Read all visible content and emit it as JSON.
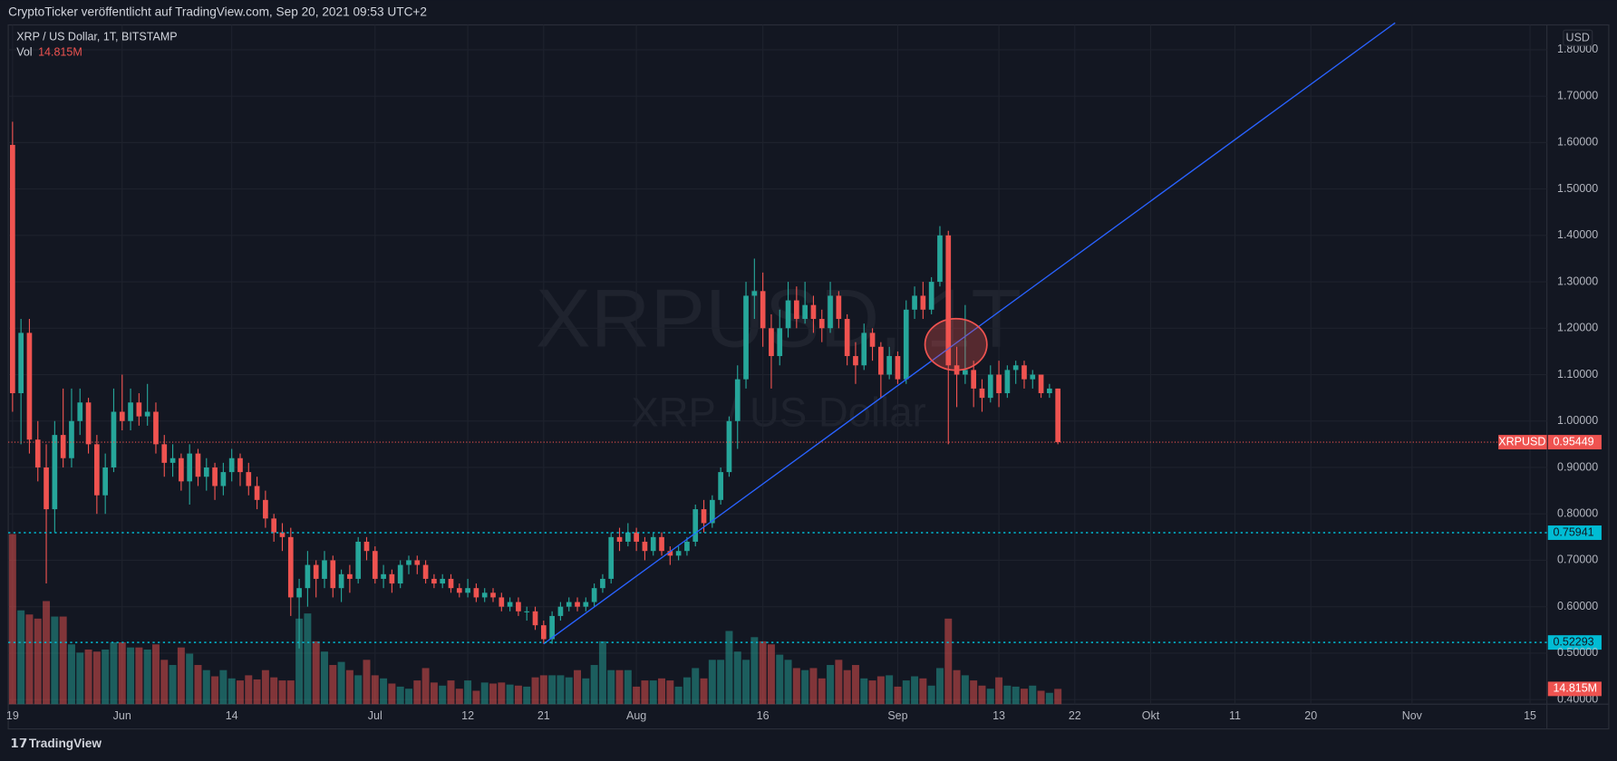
{
  "header": {
    "publisher": "CryptoTicker veröffentlicht auf TradingView.com, Sep 20, 2021 09:53 UTC+2",
    "brand": "TradingView"
  },
  "watermark": {
    "symbol": "XRPUSD, 1T",
    "name": "XRP / US Dollar"
  },
  "chart_data": {
    "type": "candlestick",
    "title": "XRP / US Dollar, 1T, BITSTAMP",
    "currency": "USD",
    "symbol": "XRPUSD",
    "up_color": "#26a69a",
    "down_color": "#ef5350",
    "grid": true,
    "xlim": [
      "2021-05-18",
      "2021-11-17"
    ],
    "ylim": [
      0.39,
      1.858
    ],
    "volume_lim": [
      0,
      165
    ],
    "yticks": [
      {
        "value": 0.4,
        "label": "0.40000"
      },
      {
        "value": 0.5,
        "label": "0.50000"
      },
      {
        "value": 0.6,
        "label": "0.60000"
      },
      {
        "value": 0.7,
        "label": "0.70000"
      },
      {
        "value": 0.8,
        "label": "0.80000"
      },
      {
        "value": 0.9,
        "label": "0.90000"
      },
      {
        "value": 1.0,
        "label": "1.00000"
      },
      {
        "value": 1.1,
        "label": "1.10000"
      },
      {
        "value": 1.2,
        "label": "1.20000"
      },
      {
        "value": 1.3,
        "label": "1.30000"
      },
      {
        "value": 1.4,
        "label": "1.40000"
      },
      {
        "value": 1.5,
        "label": "1.50000"
      },
      {
        "value": 1.6,
        "label": "1.60000"
      },
      {
        "value": 1.7,
        "label": "1.70000"
      },
      {
        "value": 1.8,
        "label": "1.80000"
      }
    ],
    "xticks": [
      {
        "value": "2021-05-19",
        "label": "19"
      },
      {
        "value": "2021-06-01",
        "label": "Jun"
      },
      {
        "value": "2021-06-14",
        "label": "14"
      },
      {
        "value": "2021-07-01",
        "label": "Jul"
      },
      {
        "value": "2021-07-12",
        "label": "12"
      },
      {
        "value": "2021-07-21",
        "label": "21"
      },
      {
        "value": "2021-08-01",
        "label": "Aug"
      },
      {
        "value": "2021-08-16",
        "label": "16"
      },
      {
        "value": "2021-09-01",
        "label": "Sep"
      },
      {
        "value": "2021-09-13",
        "label": "13"
      },
      {
        "value": "2021-09-22",
        "label": "22"
      },
      {
        "value": "2021-10-01",
        "label": "Okt"
      },
      {
        "value": "2021-10-11",
        "label": "11"
      },
      {
        "value": "2021-10-20",
        "label": "20"
      },
      {
        "value": "2021-11-01",
        "label": "Nov"
      },
      {
        "value": "2021-11-15",
        "label": "15"
      }
    ],
    "x": [
      "2021-05-19",
      "2021-05-20",
      "2021-05-21",
      "2021-05-22",
      "2021-05-23",
      "2021-05-24",
      "2021-05-25",
      "2021-05-26",
      "2021-05-27",
      "2021-05-28",
      "2021-05-29",
      "2021-05-30",
      "2021-05-31",
      "2021-06-01",
      "2021-06-02",
      "2021-06-03",
      "2021-06-04",
      "2021-06-05",
      "2021-06-06",
      "2021-06-07",
      "2021-06-08",
      "2021-06-09",
      "2021-06-10",
      "2021-06-11",
      "2021-06-12",
      "2021-06-13",
      "2021-06-14",
      "2021-06-15",
      "2021-06-16",
      "2021-06-17",
      "2021-06-18",
      "2021-06-19",
      "2021-06-20",
      "2021-06-21",
      "2021-06-22",
      "2021-06-23",
      "2021-06-24",
      "2021-06-25",
      "2021-06-26",
      "2021-06-27",
      "2021-06-28",
      "2021-06-29",
      "2021-06-30",
      "2021-07-01",
      "2021-07-02",
      "2021-07-03",
      "2021-07-04",
      "2021-07-05",
      "2021-07-06",
      "2021-07-07",
      "2021-07-08",
      "2021-07-09",
      "2021-07-10",
      "2021-07-11",
      "2021-07-12",
      "2021-07-13",
      "2021-07-14",
      "2021-07-15",
      "2021-07-16",
      "2021-07-17",
      "2021-07-18",
      "2021-07-19",
      "2021-07-20",
      "2021-07-21",
      "2021-07-22",
      "2021-07-23",
      "2021-07-24",
      "2021-07-25",
      "2021-07-26",
      "2021-07-27",
      "2021-07-28",
      "2021-07-29",
      "2021-07-30",
      "2021-07-31",
      "2021-08-01",
      "2021-08-02",
      "2021-08-03",
      "2021-08-04",
      "2021-08-05",
      "2021-08-06",
      "2021-08-07",
      "2021-08-08",
      "2021-08-09",
      "2021-08-10",
      "2021-08-11",
      "2021-08-12",
      "2021-08-13",
      "2021-08-14",
      "2021-08-15",
      "2021-08-16",
      "2021-08-17",
      "2021-08-18",
      "2021-08-19",
      "2021-08-20",
      "2021-08-21",
      "2021-08-22",
      "2021-08-23",
      "2021-08-24",
      "2021-08-25",
      "2021-08-26",
      "2021-08-27",
      "2021-08-28",
      "2021-08-29",
      "2021-08-30",
      "2021-08-31",
      "2021-09-01",
      "2021-09-02",
      "2021-09-03",
      "2021-09-04",
      "2021-09-05",
      "2021-09-06",
      "2021-09-07",
      "2021-09-08",
      "2021-09-09",
      "2021-09-10",
      "2021-09-11",
      "2021-09-12",
      "2021-09-13",
      "2021-09-14",
      "2021-09-15",
      "2021-09-16",
      "2021-09-17",
      "2021-09-18",
      "2021-09-19",
      "2021-09-20"
    ],
    "open": [
      1.595,
      1.06,
      1.19,
      0.96,
      0.9,
      0.81,
      0.97,
      0.92,
      1.0,
      1.04,
      0.95,
      0.84,
      0.9,
      1.02,
      1.0,
      1.04,
      1.01,
      1.02,
      0.95,
      0.91,
      0.92,
      0.87,
      0.93,
      0.88,
      0.9,
      0.86,
      0.89,
      0.92,
      0.89,
      0.86,
      0.83,
      0.79,
      0.76,
      0.75,
      0.62,
      0.64,
      0.69,
      0.66,
      0.7,
      0.64,
      0.67,
      0.66,
      0.74,
      0.72,
      0.66,
      0.67,
      0.65,
      0.69,
      0.7,
      0.69,
      0.66,
      0.65,
      0.66,
      0.64,
      0.63,
      0.64,
      0.62,
      0.63,
      0.62,
      0.6,
      0.61,
      0.59,
      0.59,
      0.56,
      0.53,
      0.58,
      0.6,
      0.61,
      0.6,
      0.61,
      0.64,
      0.66,
      0.75,
      0.74,
      0.76,
      0.74,
      0.72,
      0.75,
      0.72,
      0.71,
      0.72,
      0.74,
      0.81,
      0.78,
      0.83,
      0.89,
      1.0,
      1.09,
      1.27,
      1.28,
      1.2,
      1.14,
      1.2,
      1.26,
      1.22,
      1.25,
      1.22,
      1.2,
      1.27,
      1.22,
      1.14,
      1.12,
      1.19,
      1.16,
      1.1,
      1.14,
      1.09,
      1.24,
      1.27,
      1.24,
      1.3,
      1.4,
      1.12,
      1.1,
      1.11,
      1.07,
      1.05,
      1.1,
      1.06,
      1.11,
      1.12,
      1.09,
      1.1,
      1.06,
      1.07
    ],
    "high": [
      1.645,
      1.22,
      1.22,
      1.0,
      0.95,
      1.0,
      1.07,
      1.07,
      1.07,
      1.05,
      0.97,
      0.93,
      1.07,
      1.1,
      1.07,
      1.06,
      1.08,
      1.04,
      0.97,
      0.95,
      0.93,
      0.95,
      0.94,
      0.92,
      0.91,
      0.91,
      0.94,
      0.93,
      0.91,
      0.88,
      0.85,
      0.8,
      0.78,
      0.77,
      0.66,
      0.72,
      0.7,
      0.72,
      0.71,
      0.68,
      0.69,
      0.75,
      0.75,
      0.73,
      0.69,
      0.68,
      0.7,
      0.71,
      0.71,
      0.7,
      0.67,
      0.67,
      0.67,
      0.65,
      0.66,
      0.65,
      0.64,
      0.64,
      0.63,
      0.62,
      0.62,
      0.6,
      0.6,
      0.57,
      0.59,
      0.61,
      0.62,
      0.62,
      0.62,
      0.65,
      0.67,
      0.76,
      0.77,
      0.78,
      0.77,
      0.75,
      0.76,
      0.76,
      0.73,
      0.73,
      0.75,
      0.82,
      0.83,
      0.84,
      0.9,
      1.01,
      1.12,
      1.3,
      1.35,
      1.32,
      1.23,
      1.24,
      1.3,
      1.29,
      1.3,
      1.27,
      1.24,
      1.3,
      1.28,
      1.23,
      1.17,
      1.21,
      1.2,
      1.17,
      1.16,
      1.15,
      1.26,
      1.29,
      1.3,
      1.31,
      1.42,
      1.41,
      1.16,
      1.25,
      1.13,
      1.09,
      1.12,
      1.13,
      1.12,
      1.13,
      1.13,
      1.11,
      1.1,
      1.08,
      1.07
    ],
    "low": [
      1.02,
      0.95,
      0.93,
      0.87,
      0.65,
      0.76,
      0.9,
      0.9,
      0.97,
      0.93,
      0.8,
      0.8,
      0.89,
      0.98,
      0.98,
      0.99,
      0.99,
      0.93,
      0.88,
      0.88,
      0.85,
      0.82,
      0.86,
      0.85,
      0.83,
      0.84,
      0.87,
      0.86,
      0.84,
      0.81,
      0.77,
      0.74,
      0.72,
      0.58,
      0.51,
      0.6,
      0.62,
      0.64,
      0.62,
      0.61,
      0.63,
      0.65,
      0.7,
      0.65,
      0.64,
      0.63,
      0.64,
      0.67,
      0.67,
      0.65,
      0.64,
      0.64,
      0.63,
      0.62,
      0.62,
      0.61,
      0.61,
      0.61,
      0.59,
      0.59,
      0.58,
      0.57,
      0.55,
      0.52,
      0.52,
      0.57,
      0.59,
      0.59,
      0.59,
      0.6,
      0.63,
      0.65,
      0.72,
      0.73,
      0.72,
      0.7,
      0.71,
      0.71,
      0.69,
      0.7,
      0.71,
      0.73,
      0.76,
      0.77,
      0.82,
      0.88,
      0.94,
      1.07,
      1.22,
      1.16,
      1.07,
      1.12,
      1.18,
      1.2,
      1.21,
      1.19,
      1.17,
      1.19,
      1.2,
      1.12,
      1.08,
      1.11,
      1.13,
      1.05,
      1.09,
      1.08,
      1.08,
      1.22,
      1.22,
      1.23,
      1.29,
      0.95,
      1.03,
      1.08,
      1.03,
      1.02,
      1.04,
      1.03,
      1.05,
      1.08,
      1.07,
      1.07,
      1.05,
      1.05,
      0.95
    ],
    "close": [
      1.06,
      1.19,
      0.96,
      0.9,
      0.81,
      0.97,
      0.92,
      1.0,
      1.04,
      0.95,
      0.84,
      0.9,
      1.02,
      1.0,
      1.04,
      1.01,
      1.02,
      0.95,
      0.91,
      0.92,
      0.87,
      0.93,
      0.88,
      0.9,
      0.86,
      0.89,
      0.92,
      0.89,
      0.86,
      0.83,
      0.79,
      0.76,
      0.75,
      0.62,
      0.64,
      0.69,
      0.66,
      0.7,
      0.64,
      0.67,
      0.66,
      0.74,
      0.72,
      0.66,
      0.67,
      0.65,
      0.69,
      0.7,
      0.69,
      0.66,
      0.65,
      0.66,
      0.64,
      0.63,
      0.64,
      0.62,
      0.63,
      0.62,
      0.6,
      0.61,
      0.59,
      0.59,
      0.56,
      0.53,
      0.58,
      0.6,
      0.61,
      0.6,
      0.61,
      0.64,
      0.66,
      0.75,
      0.74,
      0.76,
      0.74,
      0.72,
      0.75,
      0.72,
      0.71,
      0.72,
      0.74,
      0.81,
      0.78,
      0.83,
      0.89,
      1.0,
      1.09,
      1.27,
      1.28,
      1.2,
      1.14,
      1.2,
      1.26,
      1.22,
      1.25,
      1.22,
      1.2,
      1.27,
      1.22,
      1.14,
      1.12,
      1.19,
      1.16,
      1.1,
      1.14,
      1.09,
      1.24,
      1.27,
      1.24,
      1.3,
      1.4,
      1.12,
      1.1,
      1.11,
      1.07,
      1.05,
      1.1,
      1.06,
      1.11,
      1.12,
      1.09,
      1.1,
      1.06,
      1.07,
      0.95449
    ],
    "close_label": "0.95449",
    "volume_name": "Vol",
    "volume": [
      165,
      91,
      87,
      83,
      100,
      85,
      85,
      58,
      50,
      53,
      51,
      53,
      60,
      60,
      55,
      55,
      53,
      58,
      43,
      38,
      55,
      49,
      38,
      33,
      27,
      33,
      25,
      23,
      28,
      24,
      33,
      26,
      23,
      23,
      83,
      88,
      61,
      51,
      38,
      41,
      33,
      28,
      43,
      28,
      25,
      20,
      17,
      15,
      23,
      35,
      21,
      18,
      23,
      15,
      23,
      13,
      21,
      20,
      21,
      19,
      18,
      17,
      26,
      28,
      28,
      28,
      26,
      33,
      25,
      38,
      61,
      33,
      33,
      33,
      17,
      23,
      23,
      25,
      23,
      17,
      26,
      35,
      25,
      43,
      43,
      71,
      51,
      43,
      65,
      61,
      58,
      48,
      43,
      35,
      33,
      35,
      25,
      38,
      43,
      33,
      38,
      25,
      23,
      27,
      28,
      17,
      23,
      27,
      25,
      18,
      35,
      83,
      33,
      28,
      23,
      18,
      15,
      26,
      18,
      17,
      15,
      18,
      13,
      11,
      14.815
    ],
    "volume_label": "14.815M",
    "levels": [
      {
        "value": 0.75941,
        "label": "0.75941",
        "color": "#00bcd4"
      },
      {
        "value": 0.52293,
        "label": "0.52293",
        "color": "#00bcd4"
      }
    ],
    "trendline": {
      "color": "#2962ff",
      "points": [
        {
          "x": "2021-07-21",
          "y": 0.52
        },
        {
          "x": "2021-10-30",
          "y": 1.858
        }
      ]
    }
  }
}
